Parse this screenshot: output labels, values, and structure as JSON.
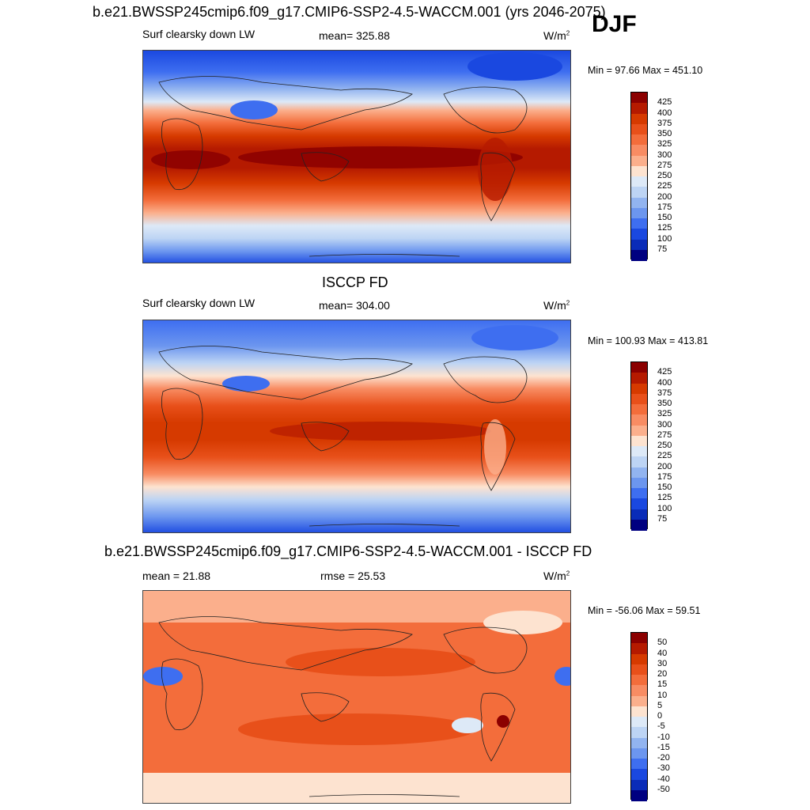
{
  "top_title": "b.e21.BWSSP245cmip6.f09_g17.CMIP6-SSP2-4.5-WACCM.001 (yrs 2046-2075)",
  "season": "DJF",
  "panels": [
    {
      "id": "model",
      "field_label": "Surf clearsky down LW",
      "stat_text": "mean= 325.88",
      "units_text": "W/m",
      "units_sup": "2",
      "minmax_text": "Min =  97.66 Max = 451.10"
    },
    {
      "id": "obs",
      "heading": "ISCCP FD",
      "field_label": "Surf clearsky down LW",
      "stat_text": "mean= 304.00",
      "units_text": "W/m",
      "units_sup": "2",
      "minmax_text": "Min = 100.93 Max = 413.81"
    },
    {
      "id": "diff",
      "heading": "b.e21.BWSSP245cmip6.f09_g17.CMIP6-SSP2-4.5-WACCM.001 - ISCCP FD",
      "mean_text": "mean =  21.88",
      "rmse_text": "rmse =  25.53",
      "units_text": "W/m",
      "units_sup": "2",
      "minmax_text": "Min = -56.06 Max =  59.51"
    }
  ],
  "colorbars": {
    "absolute": {
      "labels": [
        "425",
        "400",
        "375",
        "350",
        "325",
        "300",
        "275",
        "250",
        "225",
        "200",
        "175",
        "150",
        "125",
        "100",
        "75"
      ],
      "colors": [
        "#8b0000",
        "#b51a00",
        "#d63a00",
        "#e8501a",
        "#f36d3b",
        "#f88c63",
        "#fbaf8c",
        "#fde3d0",
        "#dde9f7",
        "#bdd4f4",
        "#92b4f0",
        "#6c96ef",
        "#3e6ef0",
        "#1a48e0",
        "#0a2cb8",
        "#000080"
      ]
    },
    "difference": {
      "labels": [
        "50",
        "40",
        "30",
        "20",
        "15",
        "10",
        "5",
        "0",
        "-5",
        "-10",
        "-15",
        "-20",
        "-30",
        "-40",
        "-50"
      ],
      "colors": [
        "#8b0000",
        "#b51a00",
        "#d63a00",
        "#e8501a",
        "#f36d3b",
        "#f88c63",
        "#fbaf8c",
        "#fde3d0",
        "#dde9f7",
        "#bdd4f4",
        "#92b4f0",
        "#6c96ef",
        "#3e6ef0",
        "#1a48e0",
        "#0a2cb8",
        "#000080"
      ]
    }
  }
}
